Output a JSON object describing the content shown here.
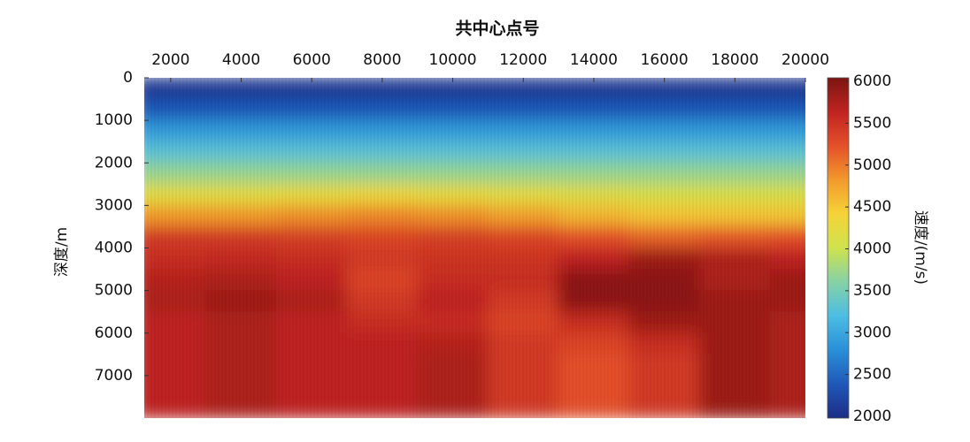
{
  "chart_data": {
    "type": "heatmap",
    "title": "共中心点号",
    "y_label": "深度/m",
    "colorbar_label": "速度/(m/s)",
    "x": [
      2000,
      4000,
      6000,
      8000,
      10000,
      12000,
      14000,
      16000,
      18000,
      20000
    ],
    "y": [
      250,
      750,
      1250,
      1750,
      2250,
      2750,
      3250,
      3750,
      4250,
      4750,
      5250,
      5750,
      6250,
      6750,
      7250,
      7750
    ],
    "z": [
      [
        2100,
        2100,
        2100,
        2100,
        2100,
        2100,
        2100,
        2100,
        2100,
        2100
      ],
      [
        2400,
        2400,
        2400,
        2400,
        2400,
        2400,
        2400,
        2400,
        2400,
        2400
      ],
      [
        2900,
        2900,
        2900,
        2900,
        2900,
        2900,
        2900,
        2900,
        2900,
        2900
      ],
      [
        3300,
        3300,
        3300,
        3300,
        3300,
        3300,
        3300,
        3300,
        3300,
        3300
      ],
      [
        3700,
        3700,
        3700,
        3700,
        3700,
        3700,
        3700,
        3700,
        3700,
        3700
      ],
      [
        4200,
        4200,
        4250,
        4300,
        4250,
        4200,
        4150,
        4100,
        4100,
        4100
      ],
      [
        4800,
        4800,
        4850,
        4900,
        4850,
        4750,
        4600,
        4500,
        4500,
        4500
      ],
      [
        5400,
        5400,
        5350,
        5300,
        5350,
        5300,
        5200,
        5100,
        5150,
        5200
      ],
      [
        5500,
        5550,
        5500,
        5400,
        5450,
        5450,
        5600,
        5800,
        5700,
        5600
      ],
      [
        5650,
        5700,
        5600,
        5300,
        5500,
        5500,
        5900,
        5900,
        5700,
        5800
      ],
      [
        5700,
        5800,
        5700,
        5400,
        5600,
        5400,
        5900,
        5900,
        5800,
        5800
      ],
      [
        5600,
        5700,
        5600,
        5500,
        5500,
        5300,
        5500,
        5800,
        5800,
        5700
      ],
      [
        5600,
        5700,
        5600,
        5600,
        5650,
        5400,
        5300,
        5500,
        5800,
        5700
      ],
      [
        5600,
        5700,
        5600,
        5600,
        5700,
        5400,
        5200,
        5400,
        5800,
        5700
      ],
      [
        5600,
        5700,
        5600,
        5600,
        5700,
        5400,
        5200,
        5400,
        5800,
        5700
      ],
      [
        5600,
        5700,
        5600,
        5600,
        5700,
        5400,
        5200,
        5400,
        5800,
        5700
      ]
    ],
    "xlim": [
      1250,
      20000
    ],
    "xticks": [
      2000,
      4000,
      6000,
      8000,
      10000,
      12000,
      14000,
      16000,
      18000,
      20000
    ],
    "ylim": [
      0,
      8000
    ],
    "y_inverted": true,
    "yticks": [
      0,
      1000,
      2000,
      3000,
      4000,
      5000,
      6000,
      7000
    ],
    "clim": [
      2000,
      6000
    ],
    "cticks": [
      2000,
      2500,
      3000,
      3500,
      4000,
      4500,
      5000,
      5500,
      6000
    ],
    "colors": [
      "#1c2d86",
      "#1f58b8",
      "#2a8fd8",
      "#4cbde3",
      "#86d2a6",
      "#cfe24e",
      "#f6d338",
      "#f29a2c",
      "#e4502a",
      "#bf2420",
      "#7c1512"
    ]
  }
}
